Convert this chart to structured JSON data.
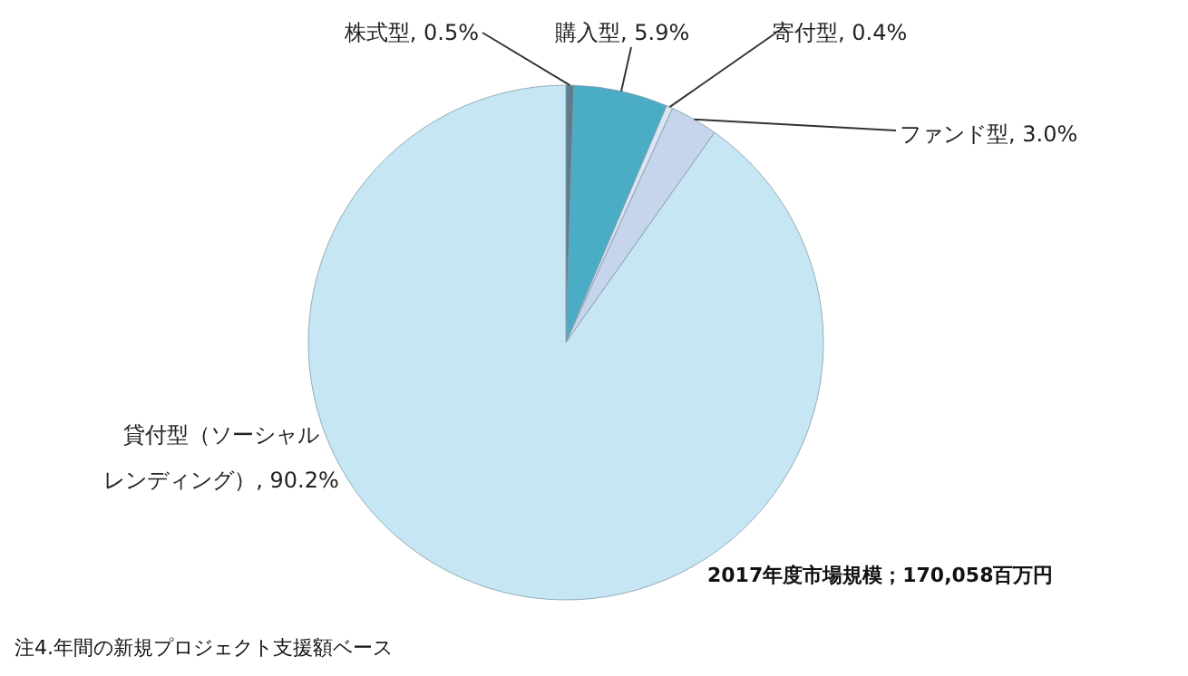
{
  "chart_data": {
    "type": "pie",
    "categories": [
      "株式型",
      "購入型",
      "寄付型",
      "ファンド型",
      "貸付型（ソーシャルレンディング）"
    ],
    "values": [
      0.5,
      5.9,
      0.4,
      3.0,
      90.2
    ],
    "value_labels": [
      "0.5%",
      "5.9%",
      "0.4%",
      "3.0%",
      "90.2%"
    ],
    "colors": [
      "#5b7d8f",
      "#4bacc6",
      "#dbe4f2",
      "#c6d4ec",
      "#c6e6f3"
    ],
    "legend": false,
    "annotations": [
      "2017年度市場規模；170,058百万円",
      "注4.年間の新規プロジェクト支援額ベース"
    ]
  }
}
